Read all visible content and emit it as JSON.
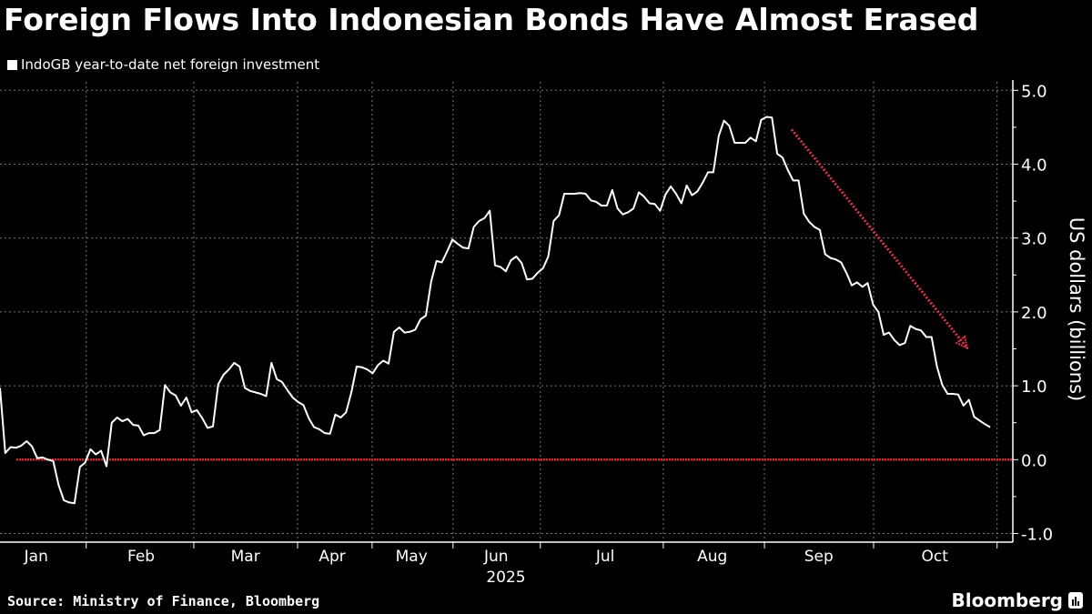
{
  "title": "Foreign Flows Into Indonesian Bonds Have Almost Erased",
  "source": "Source: Ministry of Finance, Bloomberg",
  "brand": "Bloomberg",
  "colors": {
    "line": "#ffffff",
    "zero_line": "#e0202a",
    "arrow": "#e8304a",
    "grid": "#777777"
  },
  "chart_data": {
    "type": "line",
    "title": "Foreign Flows Into Indonesian Bonds Have Almost Erased",
    "xlabel": "2025",
    "ylabel": "US dollars (billions)",
    "x_unit": "trading-day index",
    "ylim": [
      -1.1,
      5.15
    ],
    "yticks": [
      5.0,
      4.0,
      3.0,
      2.0,
      1.0,
      0.0,
      -1.0
    ],
    "ytick_labels": [
      "5.0",
      "4.0",
      "3.0",
      "2.0",
      "1.0",
      "0.0",
      "-1.0"
    ],
    "grid": true,
    "legend": {
      "position": "top-left",
      "entries": [
        "IndoGB year-to-date net foreign investment"
      ]
    },
    "month_boundaries": [
      16.2,
      36.4,
      55.9,
      69.9,
      85.1,
      101.5,
      124.6,
      143.6,
      164.1,
      187.3
    ],
    "month_labels": [
      {
        "label": "Jan",
        "x": 6.8
      },
      {
        "label": "Feb",
        "x": 26.5
      },
      {
        "label": "Mar",
        "x": 46.1
      },
      {
        "label": "Apr",
        "x": 62.4
      },
      {
        "label": "May",
        "x": 77.3
      },
      {
        "label": "Jun",
        "x": 93.2
      },
      {
        "label": "Jul",
        "x": 113.7
      },
      {
        "label": "Aug",
        "x": 133.8
      },
      {
        "label": "Sep",
        "x": 153.8
      },
      {
        "label": "Oct",
        "x": 175.6
      }
    ],
    "series": [
      {
        "name": "IndoGB year-to-date net foreign investment",
        "values": [
          0.97,
          0.09,
          0.17,
          0.16,
          0.19,
          0.25,
          0.18,
          0.02,
          0.03,
          0.0,
          -0.02,
          -0.34,
          -0.55,
          -0.58,
          -0.59,
          -0.1,
          -0.04,
          0.14,
          0.07,
          0.12,
          -0.09,
          0.5,
          0.57,
          0.52,
          0.55,
          0.47,
          0.46,
          0.33,
          0.36,
          0.36,
          0.4,
          1.01,
          0.91,
          0.87,
          0.73,
          0.84,
          0.64,
          0.67,
          0.56,
          0.43,
          0.45,
          1.02,
          1.15,
          1.22,
          1.31,
          1.26,
          0.97,
          0.93,
          0.91,
          0.89,
          0.86,
          1.31,
          1.09,
          1.05,
          0.94,
          0.84,
          0.78,
          0.74,
          0.56,
          0.44,
          0.41,
          0.36,
          0.35,
          0.61,
          0.57,
          0.64,
          0.91,
          1.26,
          1.25,
          1.22,
          1.17,
          1.28,
          1.34,
          1.3,
          1.73,
          1.79,
          1.72,
          1.73,
          1.76,
          1.9,
          1.95,
          2.41,
          2.69,
          2.67,
          2.82,
          2.98,
          2.92,
          2.87,
          2.86,
          3.15,
          3.23,
          3.27,
          3.37,
          2.63,
          2.61,
          2.55,
          2.7,
          2.75,
          2.66,
          2.44,
          2.45,
          2.53,
          2.59,
          2.75,
          3.23,
          3.31,
          3.6,
          3.6,
          3.6,
          3.61,
          3.6,
          3.51,
          3.49,
          3.44,
          3.44,
          3.65,
          3.4,
          3.32,
          3.35,
          3.4,
          3.62,
          3.56,
          3.47,
          3.46,
          3.37,
          3.59,
          3.7,
          3.6,
          3.47,
          3.71,
          3.58,
          3.63,
          3.75,
          3.89,
          3.89,
          4.38,
          4.59,
          4.52,
          4.29,
          4.29,
          4.29,
          4.36,
          4.31,
          4.6,
          4.64,
          4.63,
          4.14,
          4.09,
          3.92,
          3.78,
          3.78,
          3.33,
          3.22,
          3.15,
          3.11,
          2.78,
          2.73,
          2.71,
          2.67,
          2.53,
          2.36,
          2.4,
          2.34,
          2.39,
          2.1,
          2.0,
          1.69,
          1.72,
          1.62,
          1.55,
          1.58,
          1.81,
          1.77,
          1.75,
          1.66,
          1.66,
          1.26,
          1.01,
          0.89,
          0.89,
          0.88,
          0.73,
          0.81,
          0.58,
          0.53,
          0.48,
          0.44
        ]
      }
    ],
    "reference_line": {
      "y": 0.0
    },
    "annotations": [
      {
        "type": "arrow",
        "from": [
          148.7,
          4.47
        ],
        "to": [
          181.7,
          1.51
        ]
      }
    ]
  }
}
